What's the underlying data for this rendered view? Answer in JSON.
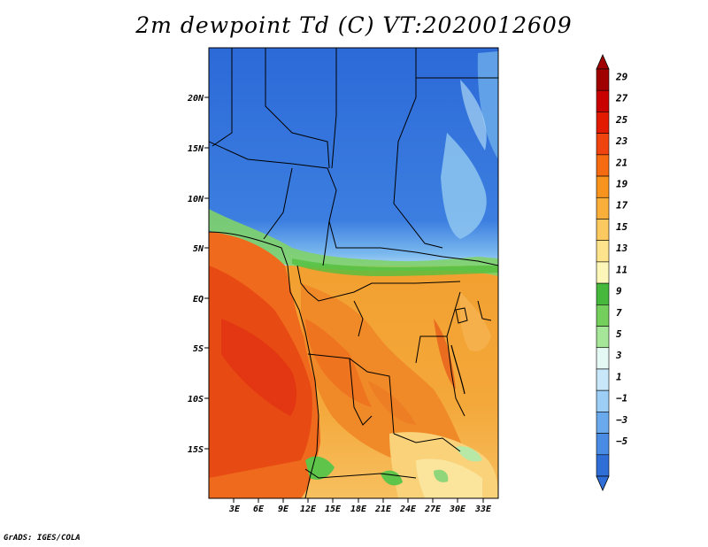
{
  "title": "2m dewpoint Td (C) VT:2020012609",
  "credit": "GrADS: IGES/COLA",
  "map": {
    "lat_labels": [
      "20N",
      "15N",
      "10N",
      "5N",
      "EQ",
      "5S",
      "10S",
      "15S"
    ],
    "lon_labels": [
      "3E",
      "6E",
      "9E",
      "12E",
      "15E",
      "18E",
      "21E",
      "24E",
      "27E",
      "30E",
      "33E"
    ]
  },
  "colorbar": {
    "labels": [
      "29",
      "27",
      "25",
      "23",
      "21",
      "19",
      "17",
      "15",
      "13",
      "11",
      "9",
      "7",
      "5",
      "3",
      "1",
      "−1",
      "−3",
      "−5"
    ],
    "colors": [
      "#a00000",
      "#c80000",
      "#e21a00",
      "#f04410",
      "#f66a12",
      "#f8941e",
      "#faaf3a",
      "#fcc860",
      "#fde48c",
      "#fcf7b8",
      "#46b83c",
      "#74cf5c",
      "#a6e698",
      "#e4f8f4",
      "#c8e8fa",
      "#9ccef6",
      "#6aaaec",
      "#4a8ce4",
      "#2f6ed6"
    ]
  }
}
